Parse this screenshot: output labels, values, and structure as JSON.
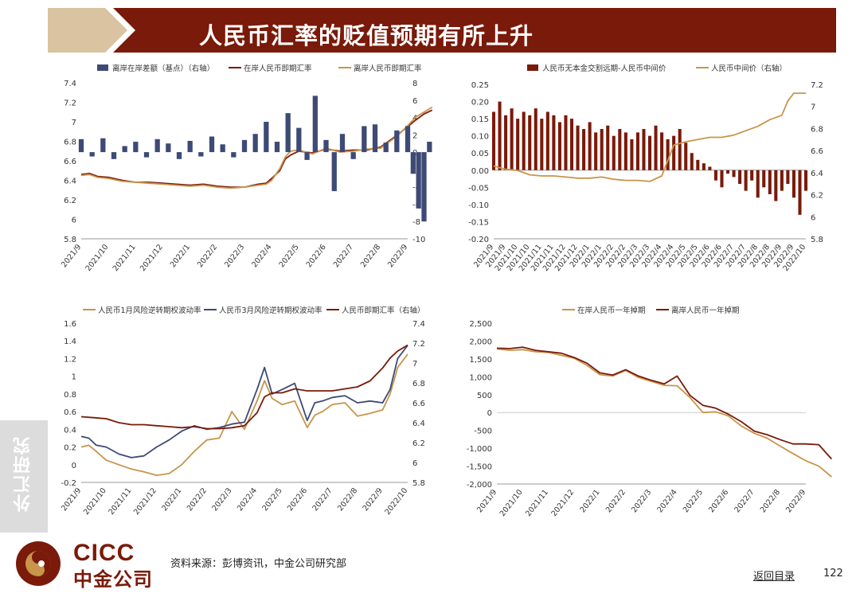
{
  "header": {
    "title": "人民币汇率的贬值预期有所上升"
  },
  "side_tab": {
    "label": "外汇研究"
  },
  "logo": {
    "en": "CICC",
    "cn": "中金公司"
  },
  "footer": {
    "source": "资料来源：彭博资讯，中金公司研究部",
    "back_link": "返回目录",
    "page_number": "122"
  },
  "colors": {
    "bar_navy": "#3d4a75",
    "dark_red": "#7a1a0a",
    "gold": "#c8954a",
    "navy_line": "#3d4a75",
    "header_red": "#7a1a0a",
    "header_tan": "#d9c3a0"
  },
  "chart_data": [
    {
      "type": "bar+line",
      "legend": [
        "离岸在岸差额（基点）（右轴）",
        "在岸人民币即期汇率",
        "离岸人民币即期汇率"
      ],
      "x_ticks": [
        "2021/9",
        "2021/10",
        "2021/11",
        "2021/12",
        "2022/1",
        "2022/2",
        "2022/3",
        "2022/4",
        "2022/5",
        "2022/6",
        "2022/7",
        "2022/8",
        "2022/9"
      ],
      "y_left": {
        "ticks": [
          "7.4",
          "7.2",
          "7",
          "6.8",
          "6.6",
          "6.4",
          "6.2",
          "6",
          "5.8"
        ],
        "range": [
          5.8,
          7.4
        ]
      },
      "y_right": {
        "ticks": [
          "8",
          "6",
          "4",
          "2",
          "0",
          "-2",
          "-4",
          "-6",
          "-8",
          "-10"
        ],
        "range": [
          -10,
          8
        ]
      },
      "series": [
        {
          "name": "在岸人民币即期汇率",
          "axis": "left",
          "color": "dark_red",
          "x": [
            0,
            0.3,
            0.6,
            1,
            1.5,
            2,
            2.5,
            3,
            3.5,
            4,
            4.5,
            5,
            5.5,
            6,
            6.5,
            6.8,
            7,
            7.3,
            7.5,
            7.7,
            8,
            8.5,
            9,
            9.5,
            10,
            10.5,
            11,
            11.3,
            11.6,
            12,
            12.3,
            12.6,
            12.9
          ],
          "values": [
            6.46,
            6.47,
            6.44,
            6.43,
            6.4,
            6.38,
            6.38,
            6.37,
            6.36,
            6.35,
            6.36,
            6.34,
            6.33,
            6.33,
            6.36,
            6.37,
            6.42,
            6.5,
            6.62,
            6.66,
            6.7,
            6.68,
            6.72,
            6.7,
            6.71,
            6.71,
            6.74,
            6.8,
            6.86,
            6.95,
            7.02,
            7.08,
            7.12
          ]
        },
        {
          "name": "离岸人民币即期汇率",
          "axis": "left",
          "color": "gold",
          "x": [
            0,
            0.3,
            0.6,
            1,
            1.5,
            2,
            2.5,
            3,
            3.5,
            4,
            4.5,
            5,
            5.5,
            6,
            6.5,
            6.8,
            7,
            7.3,
            7.5,
            7.7,
            8,
            8.5,
            9,
            9.5,
            10,
            10.5,
            11,
            11.3,
            11.6,
            12,
            12.3,
            12.6,
            12.9
          ],
          "values": [
            6.45,
            6.46,
            6.43,
            6.42,
            6.39,
            6.38,
            6.37,
            6.36,
            6.35,
            6.34,
            6.35,
            6.33,
            6.32,
            6.33,
            6.35,
            6.36,
            6.4,
            6.52,
            6.64,
            6.7,
            6.71,
            6.67,
            6.73,
            6.69,
            6.7,
            6.72,
            6.73,
            6.79,
            6.85,
            6.96,
            7.05,
            7.1,
            7.15
          ]
        },
        {
          "name": "离岸在岸差额（基点）（右轴）",
          "axis": "right",
          "color": "bar_navy",
          "type": "bar",
          "x": [
            0,
            0.4,
            0.8,
            1.2,
            1.6,
            2,
            2.4,
            2.8,
            3.2,
            3.6,
            4,
            4.4,
            4.8,
            5.2,
            5.6,
            6,
            6.4,
            6.8,
            7.2,
            7.6,
            8,
            8.3,
            8.6,
            9,
            9.3,
            9.6,
            10,
            10.4,
            10.8,
            11.2,
            11.6,
            12,
            12.2,
            12.4,
            12.6,
            12.8
          ],
          "values": [
            1.5,
            -0.5,
            1.6,
            -0.8,
            0.7,
            1.2,
            -0.6,
            1.5,
            1.0,
            -0.8,
            1.3,
            -0.5,
            1.8,
            0.9,
            -0.6,
            1.4,
            2.1,
            3.5,
            1.2,
            4.5,
            2.8,
            -0.9,
            6.5,
            1.4,
            -4.5,
            2.1,
            -0.8,
            3.0,
            3.2,
            1.1,
            2.5,
            3.0,
            -2.5,
            -6.5,
            -8.0,
            1.2
          ]
        }
      ]
    },
    {
      "type": "bar+line",
      "legend": [
        "人民币无本金交割远期-人民币中间价",
        "人民币中间价（右轴）"
      ],
      "x_ticks": [
        "2021/9",
        "2021/9",
        "2021/10",
        "2021/10",
        "2021/11",
        "2021/11",
        "2021/12",
        "2021/12",
        "2022/1",
        "2022/1",
        "2022/2",
        "2022/2",
        "2022/3",
        "2022/3",
        "2022/4",
        "2022/4",
        "2022/5",
        "2022/5",
        "2022/6",
        "2022/6",
        "2022/7",
        "2022/7",
        "2022/8",
        "2022/8",
        "2022/9",
        "2022/9",
        "2022/10"
      ],
      "y_left": {
        "ticks": [
          "0.25",
          "0.20",
          "0.15",
          "0.10",
          "0.05",
          "0.00",
          "-0.05",
          "-0.10",
          "-0.15",
          "-0.20"
        ],
        "range": [
          -0.2,
          0.25
        ]
      },
      "y_right": {
        "ticks": [
          "7.2",
          "7",
          "6.8",
          "6.6",
          "6.4",
          "6.2",
          "6",
          "5.8"
        ],
        "range": [
          5.8,
          7.2
        ]
      },
      "series": [
        {
          "name": "人民币无本金交割远期-人民币中间价",
          "axis": "left",
          "color": "dark_red",
          "type": "bar",
          "x": [
            0,
            0.5,
            1,
            1.5,
            2,
            2.5,
            3,
            3.5,
            4,
            4.5,
            5,
            5.5,
            6,
            6.5,
            7,
            7.5,
            8,
            8.5,
            9,
            9.5,
            10,
            10.5,
            11,
            11.5,
            12,
            12.5,
            13,
            13.5,
            14,
            14.5,
            15,
            15.5,
            16,
            16.5,
            17,
            17.5,
            18,
            18.5,
            19,
            19.5,
            20,
            20.5,
            21,
            21.5,
            22,
            22.5,
            23,
            23.5,
            24,
            24.5,
            25,
            25.5,
            26
          ],
          "values": [
            0.17,
            0.2,
            0.16,
            0.18,
            0.15,
            0.17,
            0.16,
            0.18,
            0.15,
            0.17,
            0.16,
            0.14,
            0.16,
            0.15,
            0.13,
            0.12,
            0.14,
            0.11,
            0.12,
            0.13,
            0.1,
            0.12,
            0.11,
            0.09,
            0.11,
            0.12,
            0.1,
            0.13,
            0.11,
            0.09,
            0.1,
            0.12,
            0.08,
            0.05,
            0.03,
            0.02,
            0.01,
            -0.03,
            -0.05,
            -0.01,
            -0.02,
            -0.04,
            -0.06,
            -0.03,
            -0.08,
            -0.05,
            -0.07,
            -0.09,
            -0.06,
            -0.04,
            -0.08,
            -0.13,
            -0.06
          ]
        },
        {
          "name": "人民币中间价（右轴）",
          "axis": "right",
          "color": "gold",
          "x": [
            0,
            1,
            2,
            3,
            4,
            5,
            6,
            7,
            8,
            9,
            10,
            11,
            12,
            13,
            14,
            15,
            16,
            17,
            18,
            19,
            20,
            21,
            22,
            23,
            24,
            24.5,
            25,
            25.5,
            26
          ],
          "values": [
            6.46,
            6.43,
            6.42,
            6.38,
            6.37,
            6.37,
            6.36,
            6.35,
            6.35,
            6.36,
            6.34,
            6.33,
            6.33,
            6.32,
            6.37,
            6.65,
            6.68,
            6.7,
            6.72,
            6.72,
            6.74,
            6.78,
            6.82,
            6.88,
            6.92,
            7.05,
            7.12,
            7.12,
            7.12
          ]
        }
      ]
    },
    {
      "type": "line",
      "legend": [
        "人民币1月风险逆转期权波动率",
        "人民币3月风险逆转期权波动率",
        "人民币即期汇率（右轴）"
      ],
      "x_ticks": [
        "2021/9",
        "2021/10",
        "2021/11",
        "2021/12",
        "2022/1",
        "2022/2",
        "2022/3",
        "2022/4",
        "2022/5",
        "2022/6",
        "2022/7",
        "2022/8",
        "2022/9",
        "2022/10"
      ],
      "y_left": {
        "ticks": [
          "1.6",
          "1.4",
          "1.2",
          "1",
          "0.8",
          "0.6",
          "0.4",
          "0.2",
          "0",
          "-0.2"
        ],
        "range": [
          -0.2,
          1.6
        ]
      },
      "y_right": {
        "ticks": [
          "7.4",
          "7.2",
          "7",
          "6.8",
          "6.6",
          "6.4",
          "6.2",
          "6",
          "5.8"
        ],
        "range": [
          5.8,
          7.4
        ]
      },
      "series": [
        {
          "name": "人民币1月风险逆转期权波动率",
          "axis": "left",
          "color": "gold",
          "x": [
            0,
            0.3,
            0.6,
            1,
            1.5,
            2,
            2.5,
            3,
            3.5,
            4,
            4.5,
            5,
            5.5,
            6,
            6.5,
            7,
            7.3,
            7.6,
            8,
            8.5,
            9,
            9.3,
            9.6,
            10,
            10.5,
            11,
            11.5,
            12,
            12.3,
            12.6,
            13
          ],
          "values": [
            0.2,
            0.22,
            0.15,
            0.05,
            0.0,
            -0.05,
            -0.08,
            -0.12,
            -0.1,
            0.0,
            0.15,
            0.28,
            0.3,
            0.6,
            0.4,
            0.72,
            0.95,
            0.75,
            0.68,
            0.72,
            0.42,
            0.56,
            0.6,
            0.68,
            0.7,
            0.55,
            0.58,
            0.62,
            0.8,
            1.1,
            1.25
          ]
        },
        {
          "name": "人民币3月风险逆转期权波动率",
          "axis": "left",
          "color": "navy_line",
          "x": [
            0,
            0.3,
            0.6,
            1,
            1.5,
            2,
            2.5,
            3,
            3.5,
            4,
            4.5,
            5,
            5.5,
            6,
            6.5,
            7,
            7.3,
            7.6,
            8,
            8.5,
            9,
            9.3,
            9.6,
            10,
            10.5,
            11,
            11.5,
            12,
            12.3,
            12.6,
            13
          ],
          "values": [
            0.32,
            0.3,
            0.22,
            0.2,
            0.12,
            0.08,
            0.1,
            0.2,
            0.28,
            0.38,
            0.44,
            0.4,
            0.42,
            0.46,
            0.48,
            0.85,
            1.1,
            0.8,
            0.85,
            0.92,
            0.5,
            0.7,
            0.72,
            0.76,
            0.78,
            0.7,
            0.72,
            0.7,
            0.85,
            1.2,
            1.35
          ]
        },
        {
          "name": "人民币即期汇率（右轴）",
          "axis": "right",
          "color": "dark_red",
          "x": [
            0,
            0.5,
            1,
            1.5,
            2,
            2.5,
            3,
            3.5,
            4,
            4.5,
            5,
            5.5,
            6,
            6.5,
            7,
            7.3,
            7.6,
            8,
            8.5,
            9,
            9.5,
            10,
            10.5,
            11,
            11.5,
            12,
            12.3,
            12.6,
            13
          ],
          "values": [
            6.46,
            6.45,
            6.44,
            6.4,
            6.38,
            6.38,
            6.37,
            6.36,
            6.35,
            6.36,
            6.34,
            6.34,
            6.35,
            6.37,
            6.5,
            6.66,
            6.7,
            6.7,
            6.74,
            6.72,
            6.72,
            6.72,
            6.74,
            6.76,
            6.82,
            6.95,
            7.05,
            7.12,
            7.18
          ]
        }
      ]
    },
    {
      "type": "line",
      "legend": [
        "在岸人民币一年掉期",
        "离岸人民币一年掉期"
      ],
      "x_ticks": [
        "2021/9",
        "2021/10",
        "2021/11",
        "2021/12",
        "2022/1",
        "2022/2",
        "2022/3",
        "2022/4",
        "2022/5",
        "2022/6",
        "2022/7",
        "2022/8",
        "2022/9"
      ],
      "y_left": {
        "ticks": [
          "2,500",
          "2,000",
          "1,500",
          "1,000",
          "500",
          "0",
          "-500",
          "-1,000",
          "-1,500",
          "-2,000"
        ],
        "range": [
          -2000,
          2500
        ]
      },
      "series": [
        {
          "name": "在岸人民币一年掉期",
          "color": "gold",
          "x": [
            0,
            0.5,
            1,
            1.5,
            2,
            2.5,
            3,
            3.5,
            4,
            4.5,
            5,
            5.5,
            6,
            6.5,
            7,
            7.5,
            8,
            8.5,
            9,
            9.5,
            10,
            10.5,
            11,
            11.5,
            12,
            12.5,
            13
          ],
          "values": [
            1780,
            1740,
            1760,
            1700,
            1680,
            1600,
            1520,
            1320,
            1060,
            1020,
            1180,
            980,
            870,
            760,
            750,
            420,
            0,
            20,
            -100,
            -380,
            -580,
            -720,
            -940,
            -1150,
            -1350,
            -1500,
            -1800
          ]
        },
        {
          "name": "离岸人民币一年掉期",
          "color": "dark_red",
          "x": [
            0,
            0.5,
            1,
            1.5,
            2,
            2.5,
            3,
            3.5,
            4,
            4.5,
            5,
            5.5,
            6,
            6.5,
            7,
            7.5,
            8,
            8.5,
            9,
            9.5,
            10,
            10.5,
            11,
            11.5,
            12,
            12.5,
            13
          ],
          "values": [
            1800,
            1790,
            1830,
            1740,
            1700,
            1660,
            1540,
            1380,
            1110,
            1050,
            1200,
            1020,
            900,
            800,
            1020,
            480,
            200,
            120,
            -50,
            -260,
            -520,
            -620,
            -760,
            -880,
            -880,
            -900,
            -1300
          ]
        }
      ]
    }
  ]
}
